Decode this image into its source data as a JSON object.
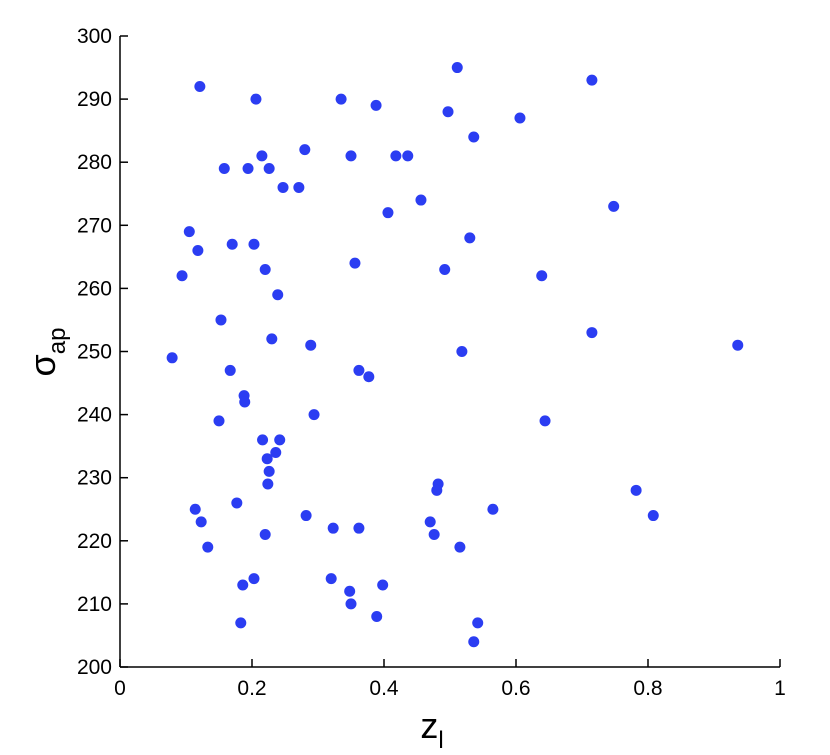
{
  "chart_data": {
    "type": "scatter",
    "xlabel": "z",
    "xlabel_subscript": "l",
    "ylabel": "σ",
    "ylabel_subscript": "ap",
    "color": "#2b3df2",
    "xlim": [
      0,
      1
    ],
    "xticks": [
      0,
      0.2,
      0.4,
      0.6,
      0.8,
      1
    ],
    "ylim": [
      200,
      300
    ],
    "yticks": [
      200,
      210,
      220,
      230,
      240,
      250,
      260,
      270,
      280,
      290,
      300
    ],
    "x": [
      0.079,
      0.121,
      0.206,
      0.335,
      0.511,
      0.715,
      0.388,
      0.497,
      0.606,
      0.536,
      0.28,
      0.215,
      0.35,
      0.418,
      0.436,
      0.158,
      0.194,
      0.226,
      0.247,
      0.271,
      0.456,
      0.748,
      0.406,
      0.105,
      0.53,
      0.118,
      0.17,
      0.203,
      0.356,
      0.22,
      0.492,
      0.094,
      0.639,
      0.239,
      0.153,
      0.715,
      0.23,
      0.289,
      0.936,
      0.518,
      0.167,
      0.362,
      0.377,
      0.188,
      0.189,
      0.294,
      0.15,
      0.644,
      0.216,
      0.242,
      0.236,
      0.223,
      0.226,
      0.224,
      0.482,
      0.48,
      0.782,
      0.177,
      0.114,
      0.565,
      0.282,
      0.808,
      0.123,
      0.47,
      0.323,
      0.362,
      0.22,
      0.476,
      0.133,
      0.515,
      0.203,
      0.32,
      0.186,
      0.398,
      0.348,
      0.35,
      0.389,
      0.183,
      0.542,
      0.536
    ],
    "values": [
      249,
      292,
      290,
      290,
      295,
      293,
      289,
      288,
      287,
      284,
      282,
      281,
      281,
      281,
      281,
      279,
      279,
      279,
      276,
      276,
      274,
      273,
      272,
      269,
      268,
      266,
      267,
      267,
      264,
      263,
      263,
      262,
      262,
      259,
      255,
      253,
      252,
      251,
      251,
      250,
      247,
      247,
      246,
      243,
      242,
      240,
      239,
      239,
      236,
      236,
      234,
      233,
      231,
      229,
      229,
      228,
      228,
      226,
      225,
      225,
      224,
      224,
      223,
      223,
      222,
      222,
      221,
      221,
      219,
      219,
      214,
      214,
      213,
      213,
      212,
      210,
      208,
      207,
      207,
      204
    ]
  }
}
